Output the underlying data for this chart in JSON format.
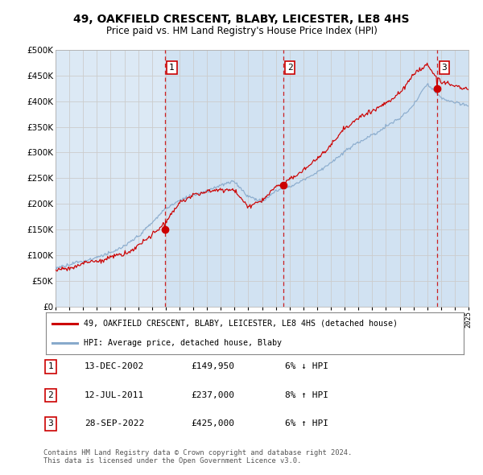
{
  "title": "49, OAKFIELD CRESCENT, BLABY, LEICESTER, LE8 4HS",
  "subtitle": "Price paid vs. HM Land Registry's House Price Index (HPI)",
  "bg_color": "#dce9f5",
  "shade_color": "#c8dcf0",
  "grid_color": "#cccccc",
  "yticks": [
    0,
    50000,
    100000,
    150000,
    200000,
    250000,
    300000,
    350000,
    400000,
    450000,
    500000
  ],
  "ytick_labels": [
    "£0",
    "£50K",
    "£100K",
    "£150K",
    "£200K",
    "£250K",
    "£300K",
    "£350K",
    "£400K",
    "£450K",
    "£500K"
  ],
  "xmin_year": 1995,
  "xmax_year": 2025,
  "xtick_years": [
    1995,
    1996,
    1997,
    1998,
    1999,
    2000,
    2001,
    2002,
    2003,
    2004,
    2005,
    2006,
    2007,
    2008,
    2009,
    2010,
    2011,
    2012,
    2013,
    2014,
    2015,
    2016,
    2017,
    2018,
    2019,
    2020,
    2021,
    2022,
    2023,
    2024,
    2025
  ],
  "sale_dates": [
    2002.95,
    2011.53,
    2022.74
  ],
  "sale_prices": [
    149950,
    237000,
    425000
  ],
  "sale_labels": [
    "1",
    "2",
    "3"
  ],
  "legend_red": "49, OAKFIELD CRESCENT, BLABY, LEICESTER, LE8 4HS (detached house)",
  "legend_blue": "HPI: Average price, detached house, Blaby",
  "table_rows": [
    [
      "1",
      "13-DEC-2002",
      "£149,950",
      "6% ↓ HPI"
    ],
    [
      "2",
      "12-JUL-2011",
      "£237,000",
      "8% ↑ HPI"
    ],
    [
      "3",
      "28-SEP-2022",
      "£425,000",
      "6% ↑ HPI"
    ]
  ],
  "footer": "Contains HM Land Registry data © Crown copyright and database right 2024.\nThis data is licensed under the Open Government Licence v3.0.",
  "red_color": "#cc0000",
  "blue_color": "#88aacc",
  "dashed_color": "#cc0000"
}
